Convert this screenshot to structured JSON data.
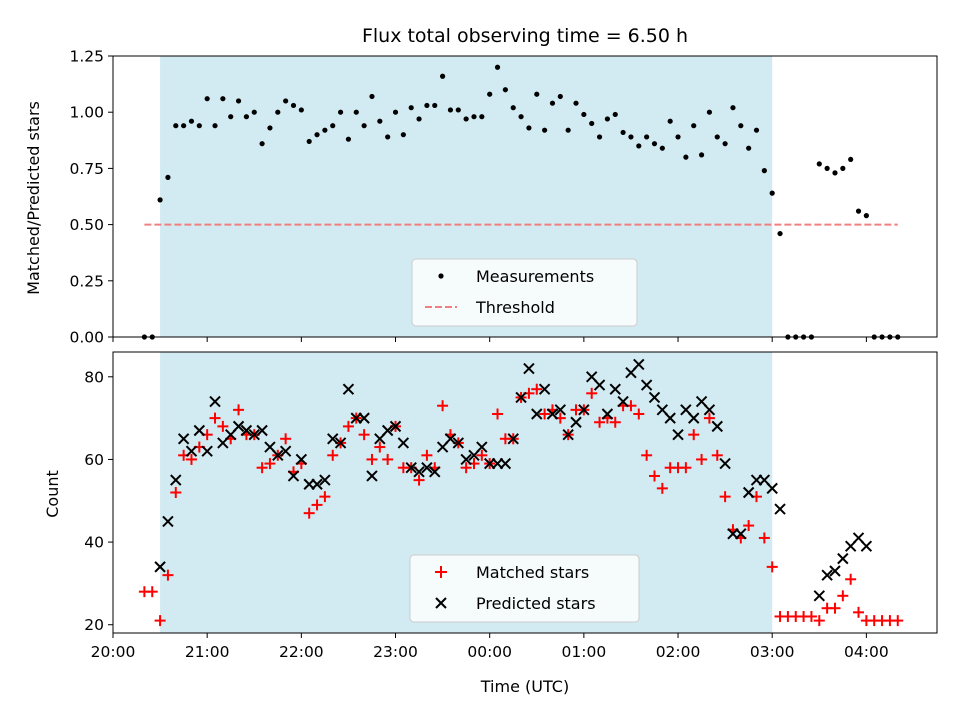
{
  "chart_data": [
    {
      "type": "scatter",
      "title": "Flux total observing time = 6.50 h",
      "xlabel": "",
      "ylabel": "Matched/Predicted stars",
      "xlim": [
        "20:00",
        "04:45"
      ],
      "ylim": [
        0,
        1.25
      ],
      "yticks": [
        "0.00",
        "0.25",
        "0.50",
        "0.75",
        "1.00",
        "1.25"
      ],
      "shaded_region": [
        "20:30",
        "03:00"
      ],
      "shade_color": "#add8e6",
      "legend_position": "lower-center",
      "series": [
        {
          "name": "Measurements",
          "marker": "dot",
          "color": "#000000",
          "x": [
            "20:20",
            "20:25",
            "20:30",
            "20:35",
            "20:40",
            "20:45",
            "20:50",
            "20:55",
            "21:00",
            "21:05",
            "21:10",
            "21:15",
            "21:20",
            "21:25",
            "21:30",
            "21:35",
            "21:40",
            "21:45",
            "21:50",
            "21:55",
            "22:00",
            "22:05",
            "22:10",
            "22:15",
            "22:20",
            "22:25",
            "22:30",
            "22:35",
            "22:40",
            "22:45",
            "22:50",
            "22:55",
            "23:00",
            "23:05",
            "23:10",
            "23:15",
            "23:20",
            "23:25",
            "23:30",
            "23:35",
            "23:40",
            "23:45",
            "23:50",
            "23:55",
            "00:00",
            "00:05",
            "00:10",
            "00:15",
            "00:20",
            "00:25",
            "00:30",
            "00:35",
            "00:40",
            "00:45",
            "00:50",
            "00:55",
            "01:00",
            "01:05",
            "01:10",
            "01:15",
            "01:20",
            "01:25",
            "01:30",
            "01:35",
            "01:40",
            "01:45",
            "01:50",
            "01:55",
            "02:00",
            "02:05",
            "02:10",
            "02:15",
            "02:20",
            "02:25",
            "02:30",
            "02:35",
            "02:40",
            "02:45",
            "02:50",
            "02:55",
            "03:00",
            "03:05",
            "03:10",
            "03:15",
            "03:20",
            "03:25",
            "03:30",
            "03:35",
            "03:40",
            "03:45",
            "03:50",
            "03:55",
            "04:00",
            "04:05",
            "04:10",
            "04:15",
            "04:20"
          ],
          "y": [
            0.0,
            0.0,
            0.61,
            0.71,
            0.94,
            0.94,
            0.96,
            0.94,
            1.06,
            0.94,
            1.06,
            0.98,
            1.05,
            0.98,
            1.0,
            0.86,
            0.93,
            1.0,
            1.05,
            1.03,
            1.01,
            0.87,
            0.9,
            0.92,
            0.94,
            1.0,
            0.88,
            1.0,
            0.94,
            1.07,
            0.96,
            0.89,
            1.0,
            0.9,
            1.02,
            0.97,
            1.03,
            1.03,
            1.16,
            1.01,
            1.01,
            0.97,
            0.98,
            0.98,
            1.08,
            1.2,
            1.1,
            1.02,
            0.98,
            0.93,
            1.08,
            0.92,
            1.04,
            1.07,
            0.92,
            1.04,
            0.99,
            0.95,
            0.89,
            0.97,
            0.99,
            0.91,
            0.89,
            0.85,
            0.89,
            0.86,
            0.84,
            0.96,
            0.89,
            0.8,
            0.94,
            0.81,
            1.0,
            0.89,
            0.86,
            1.02,
            0.94,
            0.84,
            0.92,
            0.74,
            0.64,
            0.46,
            0.0,
            0.0,
            0.0,
            0.0,
            0.77,
            0.75,
            0.73,
            0.75,
            0.79,
            0.56,
            0.54,
            0.0,
            0.0,
            0.0,
            0.0
          ]
        },
        {
          "name": "Threshold",
          "style": "dashed",
          "color": "#f08080",
          "x": [
            "20:20",
            "04:20"
          ],
          "y": [
            0.5,
            0.5
          ]
        }
      ]
    },
    {
      "type": "scatter",
      "title": "",
      "xlabel": "Time (UTC)",
      "ylabel": "Count",
      "xlim": [
        "20:00",
        "04:45"
      ],
      "ylim": [
        18,
        86
      ],
      "yticks": [
        "20",
        "40",
        "60",
        "80"
      ],
      "xticks": [
        "20:00",
        "21:00",
        "22:00",
        "23:00",
        "00:00",
        "01:00",
        "02:00",
        "03:00",
        "04:00"
      ],
      "shaded_region": [
        "20:30",
        "03:00"
      ],
      "shade_color": "#add8e6",
      "legend_position": "lower-center",
      "series": [
        {
          "name": "Matched stars",
          "marker": "plus",
          "color": "#ff0000",
          "x": [
            "20:20",
            "20:25",
            "20:30",
            "20:35",
            "20:40",
            "20:45",
            "20:50",
            "20:55",
            "21:00",
            "21:05",
            "21:10",
            "21:15",
            "21:20",
            "21:25",
            "21:30",
            "21:35",
            "21:40",
            "21:45",
            "21:50",
            "21:55",
            "22:00",
            "22:05",
            "22:10",
            "22:15",
            "22:20",
            "22:25",
            "22:30",
            "22:35",
            "22:40",
            "22:45",
            "22:50",
            "22:55",
            "23:00",
            "23:05",
            "23:10",
            "23:15",
            "23:20",
            "23:25",
            "23:30",
            "23:35",
            "23:40",
            "23:45",
            "23:50",
            "23:55",
            "00:00",
            "00:05",
            "00:10",
            "00:15",
            "00:20",
            "00:25",
            "00:30",
            "00:35",
            "00:40",
            "00:45",
            "00:50",
            "00:55",
            "01:00",
            "01:05",
            "01:10",
            "01:15",
            "01:20",
            "01:25",
            "01:30",
            "01:35",
            "01:40",
            "01:45",
            "01:50",
            "01:55",
            "02:00",
            "02:05",
            "02:10",
            "02:15",
            "02:20",
            "02:25",
            "02:30",
            "02:35",
            "02:40",
            "02:45",
            "02:50",
            "02:55",
            "03:00",
            "03:05",
            "03:10",
            "03:15",
            "03:20",
            "03:25",
            "03:30",
            "03:35",
            "03:40",
            "03:45",
            "03:50",
            "03:55",
            "04:00",
            "04:05",
            "04:10",
            "04:15",
            "04:20"
          ],
          "y": [
            28,
            28,
            21,
            32,
            52,
            61,
            60,
            63,
            66,
            70,
            68,
            65,
            72,
            66,
            66,
            58,
            59,
            61,
            65,
            57,
            59,
            47,
            49,
            51,
            61,
            64,
            68,
            70,
            66,
            60,
            63,
            60,
            68,
            58,
            58,
            55,
            61,
            58,
            73,
            66,
            64,
            58,
            59,
            61,
            59,
            71,
            65,
            65,
            75,
            76,
            77,
            71,
            72,
            70,
            66,
            72,
            72,
            76,
            69,
            70,
            69,
            73,
            73,
            71,
            61,
            56,
            53,
            58,
            58,
            58,
            66,
            60,
            70,
            61,
            51,
            43,
            41,
            44,
            51,
            41,
            34,
            22,
            22,
            22,
            22,
            22,
            21,
            24,
            24,
            27,
            31,
            23,
            21,
            21,
            21,
            21,
            21
          ]
        },
        {
          "name": "Predicted stars",
          "marker": "x",
          "color": "#000000",
          "x": [
            "20:30",
            "20:35",
            "20:40",
            "20:45",
            "20:50",
            "20:55",
            "21:00",
            "21:05",
            "21:10",
            "21:15",
            "21:20",
            "21:25",
            "21:30",
            "21:35",
            "21:40",
            "21:45",
            "21:50",
            "21:55",
            "22:00",
            "22:05",
            "22:10",
            "22:15",
            "22:20",
            "22:25",
            "22:30",
            "22:35",
            "22:40",
            "22:45",
            "22:50",
            "22:55",
            "23:00",
            "23:05",
            "23:10",
            "23:15",
            "23:20",
            "23:25",
            "23:30",
            "23:35",
            "23:40",
            "23:45",
            "23:50",
            "23:55",
            "00:00",
            "00:05",
            "00:10",
            "00:15",
            "00:20",
            "00:25",
            "00:30",
            "00:35",
            "00:40",
            "00:45",
            "00:50",
            "00:55",
            "01:00",
            "01:05",
            "01:10",
            "01:15",
            "01:20",
            "01:25",
            "01:30",
            "01:35",
            "01:40",
            "01:45",
            "01:50",
            "01:55",
            "02:00",
            "02:05",
            "02:10",
            "02:15",
            "02:20",
            "02:25",
            "02:30",
            "02:35",
            "02:40",
            "02:45",
            "02:50",
            "02:55",
            "03:00",
            "03:05",
            "03:30",
            "03:35",
            "03:40",
            "03:45",
            "03:50",
            "03:55",
            "04:00"
          ],
          "y": [
            34,
            45,
            55,
            65,
            62,
            67,
            62,
            74,
            64,
            66,
            68,
            67,
            66,
            67,
            63,
            61,
            62,
            56,
            60,
            54,
            54,
            55,
            65,
            64,
            77,
            70,
            70,
            56,
            65,
            67,
            68,
            64,
            58,
            57,
            58,
            57,
            63,
            65,
            64,
            60,
            61,
            63,
            59,
            59,
            59,
            65,
            75,
            82,
            71,
            77,
            71,
            72,
            66,
            69,
            72,
            80,
            78,
            71,
            77,
            74,
            81,
            83,
            78,
            75,
            72,
            70,
            66,
            72,
            70,
            74,
            72,
            68,
            59,
            42,
            42,
            52,
            55,
            55,
            53,
            48,
            27,
            32,
            33,
            36,
            39,
            41,
            39
          ]
        }
      ]
    }
  ]
}
